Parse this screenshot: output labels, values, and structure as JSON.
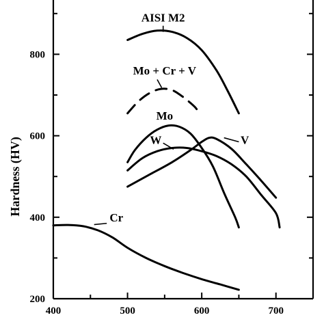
{
  "chart_data": {
    "type": "line",
    "title": "",
    "xlabel": "",
    "ylabel": "Hardness (HV)",
    "xlim": [
      400,
      750
    ],
    "ylim": [
      200,
      950
    ],
    "x_ticks": [
      400,
      500,
      600,
      700
    ],
    "y_ticks": [
      200,
      400,
      600,
      800
    ],
    "grid": false,
    "series": [
      {
        "name": "AISI M2",
        "style": "solid",
        "points": [
          [
            500,
            835
          ],
          [
            520,
            850
          ],
          [
            540,
            858
          ],
          [
            560,
            855
          ],
          [
            580,
            840
          ],
          [
            600,
            810
          ],
          [
            620,
            760
          ],
          [
            635,
            710
          ],
          [
            650,
            655
          ]
        ]
      },
      {
        "name": "Mo + Cr + V",
        "style": "dashed",
        "points": [
          [
            500,
            655
          ],
          [
            515,
            685
          ],
          [
            530,
            705
          ],
          [
            545,
            715
          ],
          [
            560,
            712
          ],
          [
            575,
            695
          ],
          [
            590,
            672
          ],
          [
            595,
            660
          ]
        ]
      },
      {
        "name": "Mo",
        "style": "solid",
        "points": [
          [
            500,
            535
          ],
          [
            510,
            565
          ],
          [
            525,
            595
          ],
          [
            540,
            615
          ],
          [
            555,
            625
          ],
          [
            570,
            622
          ],
          [
            585,
            605
          ],
          [
            600,
            570
          ],
          [
            615,
            525
          ],
          [
            630,
            460
          ],
          [
            645,
            400
          ],
          [
            650,
            375
          ]
        ]
      },
      {
        "name": "W",
        "style": "solid",
        "points": [
          [
            500,
            515
          ],
          [
            520,
            545
          ],
          [
            540,
            562
          ],
          [
            560,
            570
          ],
          [
            580,
            570
          ],
          [
            600,
            562
          ],
          [
            620,
            550
          ],
          [
            640,
            530
          ],
          [
            660,
            500
          ],
          [
            680,
            455
          ],
          [
            700,
            410
          ],
          [
            705,
            375
          ]
        ]
      },
      {
        "name": "V",
        "style": "solid",
        "points": [
          [
            500,
            475
          ],
          [
            530,
            505
          ],
          [
            560,
            535
          ],
          [
            585,
            565
          ],
          [
            600,
            585
          ],
          [
            610,
            595
          ],
          [
            620,
            592
          ],
          [
            640,
            568
          ],
          [
            660,
            530
          ],
          [
            680,
            490
          ],
          [
            700,
            448
          ]
        ]
      },
      {
        "name": "Cr",
        "style": "solid",
        "points": [
          [
            400,
            380
          ],
          [
            420,
            381
          ],
          [
            440,
            378
          ],
          [
            460,
            368
          ],
          [
            480,
            350
          ],
          [
            500,
            325
          ],
          [
            525,
            300
          ],
          [
            550,
            280
          ],
          [
            575,
            263
          ],
          [
            600,
            248
          ],
          [
            625,
            235
          ],
          [
            650,
            222
          ]
        ]
      }
    ]
  }
}
